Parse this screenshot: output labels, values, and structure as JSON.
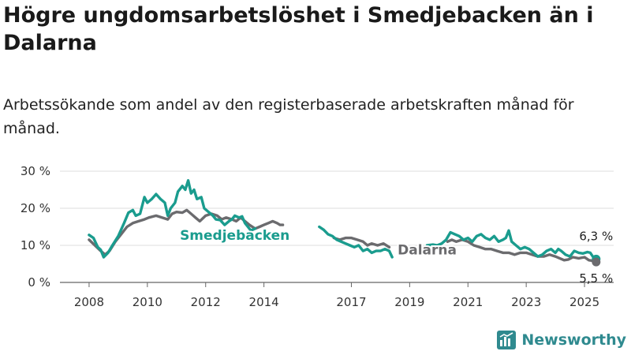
{
  "title": "Högre ungdomsarbetslöshet i Smedjebacken än i Dalarna",
  "subtitle": "Arbetssökande som andel av den registerbaserade arbetskraften månad för månad.",
  "brand": {
    "name": "Newsworthy",
    "color": "#2f8a8f"
  },
  "chart_data": {
    "type": "line",
    "xlim": [
      2007.0,
      2026.0
    ],
    "ylim": [
      0,
      30
    ],
    "x_ticks": [
      2008,
      2010,
      2012,
      2014,
      2017,
      2019,
      2021,
      2023,
      2025
    ],
    "y_ticks": [
      {
        "value": 0,
        "label": "0 %"
      },
      {
        "value": 10,
        "label": "10 %"
      },
      {
        "value": 20,
        "label": "20 %"
      },
      {
        "value": 30,
        "label": "30 %"
      }
    ],
    "grid": true,
    "series": [
      {
        "name": "Smedjebacken",
        "color": "#1a9c8e",
        "end_label": "6,3 %",
        "points": [
          [
            2008.0,
            12.8
          ],
          [
            2008.15,
            12.0
          ],
          [
            2008.3,
            9.5
          ],
          [
            2008.4,
            8.8
          ],
          [
            2008.5,
            6.8
          ],
          [
            2008.65,
            8.0
          ],
          [
            2008.8,
            10.0
          ],
          [
            2009.0,
            12.5
          ],
          [
            2009.2,
            16.0
          ],
          [
            2009.35,
            18.8
          ],
          [
            2009.5,
            19.5
          ],
          [
            2009.6,
            18.0
          ],
          [
            2009.75,
            18.5
          ],
          [
            2009.9,
            23.0
          ],
          [
            2010.0,
            21.5
          ],
          [
            2010.15,
            22.5
          ],
          [
            2010.3,
            23.8
          ],
          [
            2010.45,
            22.5
          ],
          [
            2010.6,
            21.5
          ],
          [
            2010.7,
            18.0
          ],
          [
            2010.8,
            20.0
          ],
          [
            2010.95,
            21.5
          ],
          [
            2011.05,
            24.5
          ],
          [
            2011.2,
            26.0
          ],
          [
            2011.3,
            25.0
          ],
          [
            2011.4,
            27.5
          ],
          [
            2011.5,
            24.0
          ],
          [
            2011.6,
            25.0
          ],
          [
            2011.7,
            22.5
          ],
          [
            2011.85,
            23.0
          ],
          [
            2011.95,
            20.0
          ],
          [
            2012.1,
            19.0
          ],
          [
            2012.25,
            18.0
          ],
          [
            2012.35,
            17.0
          ],
          [
            2012.5,
            16.8
          ],
          [
            2012.65,
            15.5
          ],
          [
            2012.8,
            16.5
          ],
          [
            2012.9,
            17.0
          ],
          [
            2013.0,
            18.0
          ],
          [
            2013.15,
            17.5
          ],
          [
            2013.25,
            17.8
          ],
          [
            2013.35,
            16.0
          ],
          [
            2013.45,
            15.0
          ],
          [
            2013.55,
            14.0
          ],
          [
            2013.7,
            14.5
          ],
          null,
          [
            2015.9,
            15.0
          ],
          [
            2016.05,
            14.2
          ],
          [
            2016.2,
            13.0
          ],
          [
            2016.35,
            12.5
          ],
          [
            2016.5,
            11.5
          ],
          [
            2016.65,
            11.0
          ],
          [
            2016.8,
            10.5
          ],
          [
            2016.95,
            10.0
          ],
          [
            2017.1,
            9.5
          ],
          [
            2017.25,
            10.0
          ],
          [
            2017.4,
            8.5
          ],
          [
            2017.55,
            9.0
          ],
          [
            2017.7,
            8.0
          ],
          [
            2017.85,
            8.5
          ],
          [
            2018.0,
            8.5
          ],
          [
            2018.15,
            9.0
          ],
          [
            2018.3,
            8.5
          ],
          [
            2018.4,
            6.8
          ],
          null,
          [
            2019.6,
            10.0
          ],
          [
            2019.8,
            10.2
          ],
          [
            2019.95,
            10.0
          ],
          [
            2020.1,
            10.5
          ],
          [
            2020.25,
            11.5
          ],
          [
            2020.4,
            13.5
          ],
          [
            2020.55,
            13.0
          ],
          [
            2020.7,
            12.5
          ],
          [
            2020.85,
            11.5
          ],
          [
            2021.0,
            12.0
          ],
          [
            2021.15,
            11.0
          ],
          [
            2021.3,
            12.5
          ],
          [
            2021.45,
            13.0
          ],
          [
            2021.6,
            12.0
          ],
          [
            2021.75,
            11.5
          ],
          [
            2021.9,
            12.5
          ],
          [
            2022.05,
            11.0
          ],
          [
            2022.2,
            11.5
          ],
          [
            2022.3,
            12.0
          ],
          [
            2022.4,
            14.0
          ],
          [
            2022.5,
            11.0
          ],
          [
            2022.65,
            10.0
          ],
          [
            2022.8,
            9.0
          ],
          [
            2022.95,
            9.5
          ],
          [
            2023.1,
            9.0
          ],
          [
            2023.25,
            8.0
          ],
          [
            2023.4,
            7.0
          ],
          [
            2023.55,
            7.5
          ],
          [
            2023.7,
            8.5
          ],
          [
            2023.85,
            9.0
          ],
          [
            2024.0,
            8.0
          ],
          [
            2024.1,
            9.0
          ],
          [
            2024.2,
            8.5
          ],
          [
            2024.35,
            7.5
          ],
          [
            2024.5,
            7.0
          ],
          [
            2024.65,
            8.5
          ],
          [
            2024.8,
            8.0
          ],
          [
            2024.95,
            7.8
          ],
          [
            2025.1,
            8.2
          ],
          [
            2025.2,
            8.0
          ],
          [
            2025.3,
            6.8
          ],
          [
            2025.4,
            6.3
          ]
        ]
      },
      {
        "name": "Dalarna",
        "color": "#6b6b6e",
        "end_label": "5,5 %",
        "points": [
          [
            2008.0,
            11.5
          ],
          [
            2008.2,
            10.0
          ],
          [
            2008.4,
            8.5
          ],
          [
            2008.55,
            7.5
          ],
          [
            2008.7,
            8.5
          ],
          [
            2008.9,
            11.0
          ],
          [
            2009.1,
            13.0
          ],
          [
            2009.3,
            15.0
          ],
          [
            2009.5,
            16.0
          ],
          [
            2009.7,
            16.5
          ],
          [
            2009.9,
            17.0
          ],
          [
            2010.05,
            17.5
          ],
          [
            2010.3,
            18.0
          ],
          [
            2010.5,
            17.5
          ],
          [
            2010.7,
            17.0
          ],
          [
            2010.85,
            18.5
          ],
          [
            2011.0,
            19.0
          ],
          [
            2011.2,
            18.8
          ],
          [
            2011.35,
            19.5
          ],
          [
            2011.5,
            18.5
          ],
          [
            2011.65,
            17.5
          ],
          [
            2011.8,
            16.5
          ],
          [
            2012.0,
            18.0
          ],
          [
            2012.2,
            18.5
          ],
          [
            2012.4,
            18.0
          ],
          [
            2012.55,
            17.0
          ],
          [
            2012.7,
            17.5
          ],
          [
            2012.9,
            17.0
          ],
          [
            2013.05,
            16.5
          ],
          [
            2013.2,
            17.5
          ],
          [
            2013.35,
            16.5
          ],
          [
            2013.5,
            15.5
          ],
          [
            2013.7,
            14.5
          ],
          [
            2013.85,
            15.0
          ],
          [
            2014.0,
            15.5
          ],
          [
            2014.15,
            16.0
          ],
          [
            2014.3,
            16.5
          ],
          [
            2014.45,
            16.0
          ],
          [
            2014.55,
            15.5
          ],
          [
            2014.65,
            15.5
          ],
          null,
          [
            2016.4,
            12.0
          ],
          [
            2016.6,
            11.5
          ],
          [
            2016.8,
            12.0
          ],
          [
            2017.0,
            12.0
          ],
          [
            2017.2,
            11.5
          ],
          [
            2017.4,
            11.0
          ],
          [
            2017.55,
            10.0
          ],
          [
            2017.7,
            10.5
          ],
          [
            2017.9,
            10.0
          ],
          [
            2018.1,
            10.5
          ],
          [
            2018.3,
            9.5
          ],
          null,
          [
            2020.3,
            11.0
          ],
          [
            2020.45,
            11.5
          ],
          [
            2020.6,
            11.0
          ],
          [
            2020.8,
            11.5
          ],
          [
            2021.0,
            11.0
          ],
          [
            2021.2,
            10.0
          ],
          [
            2021.4,
            9.5
          ],
          [
            2021.6,
            9.0
          ],
          [
            2021.8,
            9.0
          ],
          [
            2022.0,
            8.5
          ],
          [
            2022.2,
            8.0
          ],
          [
            2022.4,
            8.0
          ],
          [
            2022.6,
            7.5
          ],
          [
            2022.8,
            8.0
          ],
          [
            2023.0,
            8.0
          ],
          [
            2023.2,
            7.5
          ],
          [
            2023.4,
            7.0
          ],
          [
            2023.6,
            7.0
          ],
          [
            2023.8,
            7.5
          ],
          [
            2024.0,
            7.0
          ],
          [
            2024.15,
            6.5
          ],
          [
            2024.3,
            6.0
          ],
          [
            2024.45,
            6.2
          ],
          [
            2024.6,
            6.8
          ],
          [
            2024.8,
            6.5
          ],
          [
            2025.0,
            6.8
          ],
          [
            2025.15,
            6.0
          ],
          [
            2025.3,
            5.8
          ],
          [
            2025.4,
            5.5
          ]
        ]
      }
    ]
  }
}
